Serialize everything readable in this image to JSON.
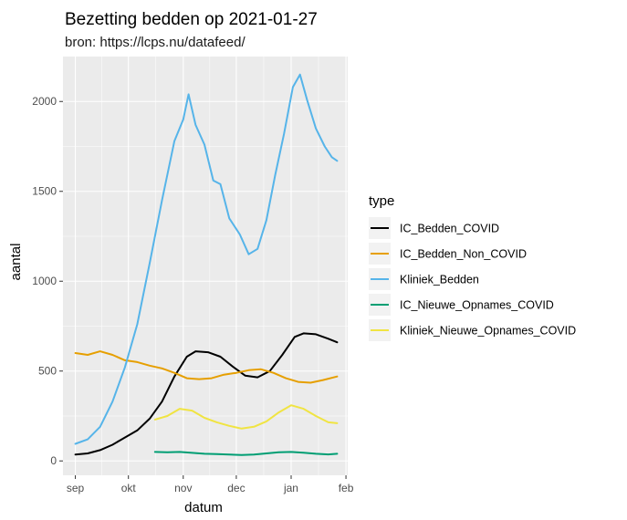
{
  "chart_data": {
    "type": "line",
    "title": "Bezetting bedden op 2021-01-27",
    "subtitle": "bron: https://lcps.nu/datafeed/",
    "xlabel": "datum",
    "ylabel": "aantal",
    "x_ticks": [
      "sep",
      "okt",
      "nov",
      "dec",
      "jan",
      "feb"
    ],
    "y_ticks": [
      "0",
      "500",
      "1000",
      "1500",
      "2000"
    ],
    "xlim": [
      "2020-08-25",
      "2021-02-02"
    ],
    "ylim": [
      -80,
      2250
    ],
    "grid": true,
    "legend_title": "type",
    "legend_position": "right",
    "series": [
      {
        "name": "IC_Bedden_COVID",
        "color": "#000000",
        "points": [
          [
            "2020-09-01",
            35
          ],
          [
            "2020-09-08",
            42
          ],
          [
            "2020-09-15",
            60
          ],
          [
            "2020-09-22",
            90
          ],
          [
            "2020-09-29",
            130
          ],
          [
            "2020-10-06",
            170
          ],
          [
            "2020-10-13",
            235
          ],
          [
            "2020-10-20",
            330
          ],
          [
            "2020-10-27",
            470
          ],
          [
            "2020-11-03",
            580
          ],
          [
            "2020-11-08",
            610
          ],
          [
            "2020-11-15",
            605
          ],
          [
            "2020-11-22",
            580
          ],
          [
            "2020-11-29",
            525
          ],
          [
            "2020-12-06",
            475
          ],
          [
            "2020-12-13",
            465
          ],
          [
            "2020-12-20",
            500
          ],
          [
            "2020-12-27",
            590
          ],
          [
            "2021-01-03",
            690
          ],
          [
            "2021-01-08",
            710
          ],
          [
            "2021-01-15",
            705
          ],
          [
            "2021-01-22",
            680
          ],
          [
            "2021-01-27",
            660
          ]
        ]
      },
      {
        "name": "IC_Bedden_Non_COVID",
        "color": "#E69F00",
        "points": [
          [
            "2020-09-01",
            600
          ],
          [
            "2020-09-08",
            590
          ],
          [
            "2020-09-15",
            610
          ],
          [
            "2020-09-22",
            590
          ],
          [
            "2020-09-29",
            560
          ],
          [
            "2020-10-06",
            550
          ],
          [
            "2020-10-13",
            530
          ],
          [
            "2020-10-20",
            515
          ],
          [
            "2020-10-27",
            490
          ],
          [
            "2020-11-03",
            460
          ],
          [
            "2020-11-10",
            455
          ],
          [
            "2020-11-17",
            460
          ],
          [
            "2020-11-24",
            480
          ],
          [
            "2020-12-01",
            490
          ],
          [
            "2020-12-08",
            505
          ],
          [
            "2020-12-15",
            510
          ],
          [
            "2020-12-22",
            490
          ],
          [
            "2020-12-29",
            460
          ],
          [
            "2021-01-05",
            440
          ],
          [
            "2021-01-12",
            435
          ],
          [
            "2021-01-19",
            450
          ],
          [
            "2021-01-27",
            470
          ]
        ]
      },
      {
        "name": "Kliniek_Bedden",
        "color": "#56B4E9",
        "points": [
          [
            "2020-09-01",
            95
          ],
          [
            "2020-09-08",
            120
          ],
          [
            "2020-09-15",
            190
          ],
          [
            "2020-09-22",
            330
          ],
          [
            "2020-09-29",
            520
          ],
          [
            "2020-10-06",
            760
          ],
          [
            "2020-10-13",
            1100
          ],
          [
            "2020-10-20",
            1450
          ],
          [
            "2020-10-27",
            1780
          ],
          [
            "2020-11-01",
            1900
          ],
          [
            "2020-11-04",
            2040
          ],
          [
            "2020-11-08",
            1870
          ],
          [
            "2020-11-13",
            1760
          ],
          [
            "2020-11-18",
            1560
          ],
          [
            "2020-11-22",
            1540
          ],
          [
            "2020-11-27",
            1350
          ],
          [
            "2020-12-03",
            1260
          ],
          [
            "2020-12-08",
            1150
          ],
          [
            "2020-12-13",
            1180
          ],
          [
            "2020-12-18",
            1340
          ],
          [
            "2020-12-23",
            1590
          ],
          [
            "2020-12-28",
            1820
          ],
          [
            "2021-01-02",
            2080
          ],
          [
            "2021-01-06",
            2150
          ],
          [
            "2021-01-10",
            2010
          ],
          [
            "2021-01-15",
            1850
          ],
          [
            "2021-01-20",
            1750
          ],
          [
            "2021-01-24",
            1690
          ],
          [
            "2021-01-27",
            1670
          ]
        ]
      },
      {
        "name": "IC_Nieuwe_Opnames_COVID",
        "color": "#009E73",
        "points": [
          [
            "2020-10-16",
            50
          ],
          [
            "2020-10-23",
            48
          ],
          [
            "2020-10-30",
            50
          ],
          [
            "2020-11-06",
            45
          ],
          [
            "2020-11-13",
            40
          ],
          [
            "2020-11-20",
            38
          ],
          [
            "2020-11-27",
            35
          ],
          [
            "2020-12-04",
            33
          ],
          [
            "2020-12-11",
            35
          ],
          [
            "2020-12-18",
            42
          ],
          [
            "2020-12-25",
            48
          ],
          [
            "2021-01-01",
            50
          ],
          [
            "2021-01-08",
            46
          ],
          [
            "2021-01-15",
            40
          ],
          [
            "2021-01-22",
            36
          ],
          [
            "2021-01-27",
            40
          ]
        ]
      },
      {
        "name": "Kliniek_Nieuwe_Opnames_COVID",
        "color": "#F0E442",
        "points": [
          [
            "2020-10-16",
            230
          ],
          [
            "2020-10-23",
            250
          ],
          [
            "2020-10-30",
            290
          ],
          [
            "2020-11-06",
            280
          ],
          [
            "2020-11-13",
            240
          ],
          [
            "2020-11-20",
            215
          ],
          [
            "2020-11-27",
            195
          ],
          [
            "2020-12-04",
            180
          ],
          [
            "2020-12-11",
            190
          ],
          [
            "2020-12-18",
            220
          ],
          [
            "2020-12-25",
            270
          ],
          [
            "2021-01-01",
            310
          ],
          [
            "2021-01-08",
            290
          ],
          [
            "2021-01-15",
            250
          ],
          [
            "2021-01-22",
            215
          ],
          [
            "2021-01-27",
            210
          ]
        ]
      }
    ]
  }
}
